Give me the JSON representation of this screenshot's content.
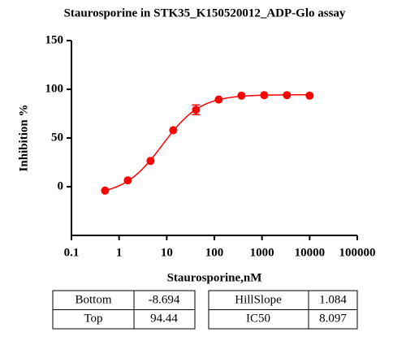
{
  "chart_data": {
    "type": "scatter",
    "title": "Staurosporine in STK35_K150520012_ADP-Glo assay",
    "xlabel": "Staurosporine,nM",
    "ylabel": "Inhibition %",
    "log_x": true,
    "x": [
      0.508,
      1.524,
      4.572,
      13.72,
      41.15,
      123.5,
      370.4,
      1111,
      3333,
      10000
    ],
    "series": [
      {
        "color": "#ff0000",
        "values": [
          -4,
          6.5,
          26.5,
          58,
          79,
          89.5,
          93.5,
          94,
          94,
          93.5
        ],
        "errors": [
          null,
          null,
          null,
          null,
          5,
          null,
          null,
          null,
          null,
          null
        ]
      }
    ],
    "xlim": [
      0.1,
      100000
    ],
    "xticks": [
      0.1,
      1,
      10,
      100,
      1000,
      10000,
      100000
    ],
    "ylim": [
      -50,
      150
    ],
    "yticks": [
      0,
      50,
      100,
      150
    ]
  },
  "table": {
    "rows": [
      [
        "Bottom",
        -8.694,
        "HillSlope",
        1.084
      ],
      [
        "Top",
        94.44,
        "IC50",
        8.097
      ]
    ]
  }
}
